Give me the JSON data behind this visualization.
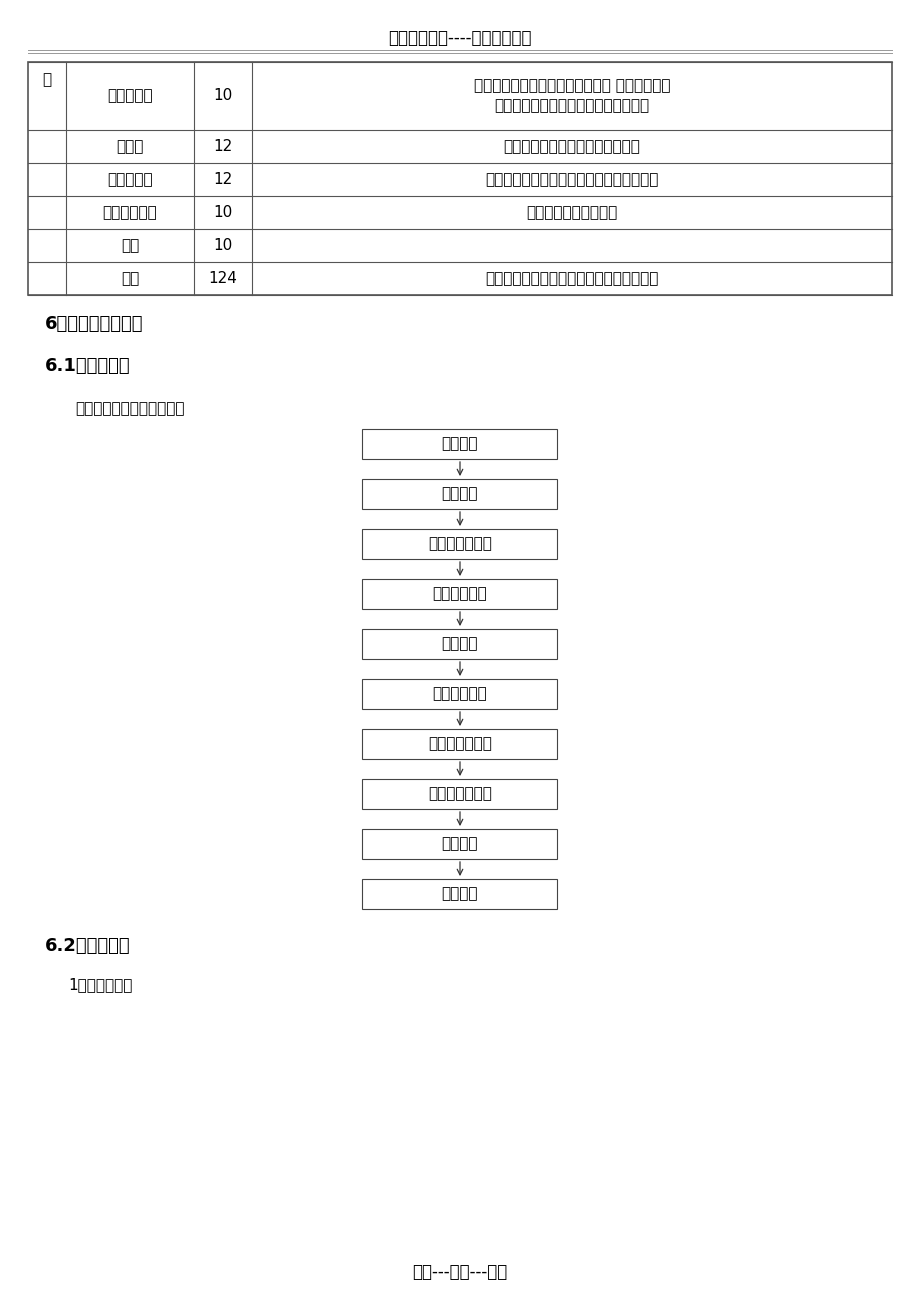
{
  "header_title": "精选优质文档----倾情为你奉上",
  "footer_title": "专心---专注---专业",
  "table": {
    "col0_header": "砌",
    "rows": [
      {
        "col1": "混凝土工班",
        "col2": "10",
        "col3a": "衬砌台车就位、混凝土灌筑、拆模 仰拱、填充、",
        "col3b": "底板混凝土施工；水沟电缆槽的施工等"
      },
      {
        "col1": "运输队",
        "col2": "12",
        "col3a": "出碴、运输、调度、维修、保养等",
        "col3b": ""
      },
      {
        "col1": "综合保障队",
        "col2": "12",
        "col3a": "风、水、电及其设备维修、保养，道路养护",
        "col3b": ""
      },
      {
        "col1": "钢结构加工队",
        "col2": "10",
        "col3a": "各种钢结构加工及预制",
        "col3b": ""
      },
      {
        "col1": "其他",
        "col2": "10",
        "col3a": "",
        "col3b": ""
      },
      {
        "col1": "小计",
        "col2": "124",
        "col3a": "根据工作面的具体情况，人员可作机动调整",
        "col3b": ""
      }
    ]
  },
  "section_title1": "6、施工工艺及方法",
  "section_title2": "6.1、施工工艺",
  "intro_text": "明洞施工工艺流程见如图。",
  "flow_steps": [
    "明洞开挖",
    "基底处理",
    "浇筑仰拱填充砼",
    "台车支撑定位",
    "绑扎钢筋",
    "安设外模挡头",
    "洞门及拱墙衬砌",
    "明洞防水层施作",
    "洞门建筑",
    "明洞回填"
  ],
  "section_title3": "6.2、施工工艺",
  "sub_item": "1）、明洞开挖",
  "bg_color": "#ffffff",
  "text_color": "#000000",
  "table_border_color": "#555555",
  "box_border_color": "#555555"
}
